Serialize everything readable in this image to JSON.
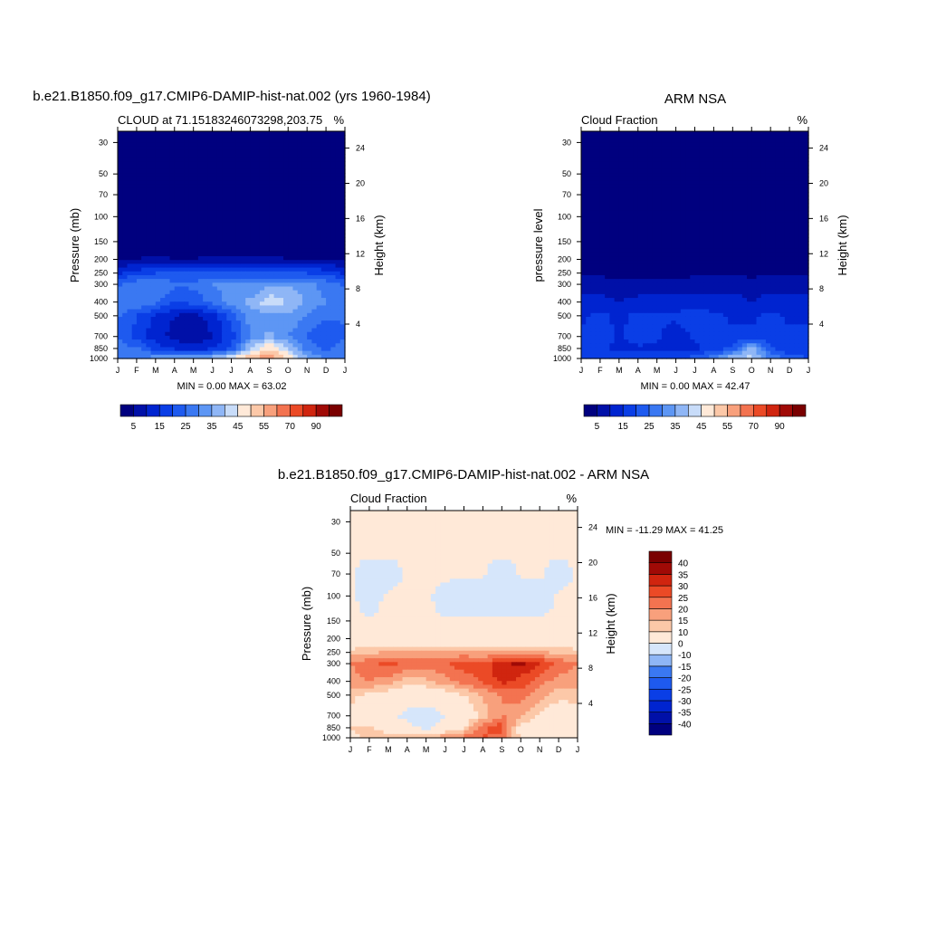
{
  "panels": {
    "model": {
      "title": "b.e21.B1850.f09_g17.CMIP6-DAMIP-hist-nat.002 (yrs 1960-1984)",
      "left_label": "CLOUD at 71.15183246073298,203.75",
      "right_label": "%",
      "ylabel_left": "Pressure (mb)",
      "ylabel_right": "Height (km)",
      "stats": "MIN =   0.00 MAX =  63.02"
    },
    "obs": {
      "title": "ARM NSA",
      "left_label": "Cloud Fraction",
      "right_label": "%",
      "ylabel_left": "pressure level",
      "ylabel_right": "Height (km)",
      "stats": "MIN =   0.00 MAX =  42.47"
    },
    "diff": {
      "title": "b.e21.B1850.f09_g17.CMIP6-DAMIP-hist-nat.002 - ARM NSA",
      "left_label": "Cloud Fraction",
      "right_label": "%",
      "ylabel_left": "Pressure (mb)",
      "ylabel_right": "Height (km)",
      "stats": "MIN = -11.29 MAX =  41.25"
    }
  },
  "chart_data": [
    {
      "type": "heatmap",
      "name": "model",
      "x": [
        "J",
        "F",
        "M",
        "A",
        "M",
        "J",
        "J",
        "A",
        "S",
        "O",
        "N",
        "D",
        "J"
      ],
      "pressure_ticks": [
        30,
        50,
        70,
        100,
        150,
        200,
        250,
        300,
        400,
        500,
        700,
        850,
        1000
      ],
      "height_ticks": [
        24,
        20,
        16,
        12,
        8,
        4
      ],
      "plev": [
        1000,
        850,
        700,
        500,
        400,
        300,
        250,
        200,
        150,
        100,
        70,
        50,
        30
      ],
      "values": [
        [
          30,
          30,
          33,
          36,
          36,
          40,
          46,
          56,
          60,
          50,
          36,
          30,
          30
        ],
        [
          28,
          26,
          18,
          14,
          12,
          14,
          20,
          40,
          50,
          40,
          28,
          24,
          28
        ],
        [
          24,
          18,
          12,
          8,
          6,
          10,
          18,
          30,
          36,
          30,
          24,
          20,
          24
        ],
        [
          26,
          20,
          14,
          10,
          8,
          12,
          22,
          32,
          34,
          34,
          30,
          26,
          26
        ],
        [
          30,
          30,
          26,
          20,
          22,
          26,
          34,
          36,
          44,
          40,
          34,
          30,
          30
        ],
        [
          24,
          28,
          30,
          26,
          26,
          30,
          32,
          30,
          34,
          34,
          32,
          28,
          24
        ],
        [
          14,
          18,
          20,
          20,
          20,
          20,
          20,
          20,
          20,
          20,
          20,
          18,
          14
        ],
        [
          4,
          5,
          6,
          5,
          5,
          6,
          6,
          6,
          6,
          5,
          5,
          5,
          4
        ],
        [
          2,
          2,
          2,
          2,
          2,
          2,
          2,
          2,
          2,
          2,
          2,
          2,
          2
        ],
        [
          1,
          1,
          1,
          1,
          1,
          1,
          1,
          1,
          1,
          1,
          1,
          1,
          1
        ],
        [
          1,
          1,
          1,
          1,
          1,
          1,
          1,
          1,
          1,
          1,
          1,
          1,
          1
        ],
        [
          1,
          1,
          1,
          1,
          1,
          1,
          1,
          1,
          1,
          1,
          1,
          1,
          1
        ],
        [
          1,
          1,
          1,
          1,
          1,
          1,
          1,
          1,
          1,
          1,
          1,
          1,
          1
        ]
      ],
      "levels": [
        5,
        10,
        15,
        20,
        25,
        30,
        35,
        40,
        45,
        50,
        55,
        60,
        70,
        80,
        90
      ],
      "colorbar_labels": [
        "5",
        "15",
        "25",
        "35",
        "45",
        "55",
        "70",
        "90"
      ]
    },
    {
      "type": "heatmap",
      "name": "obs",
      "x": [
        "J",
        "F",
        "M",
        "A",
        "M",
        "J",
        "J",
        "A",
        "S",
        "O",
        "N",
        "D",
        "J"
      ],
      "pressure_ticks": [
        30,
        50,
        70,
        100,
        150,
        200,
        250,
        300,
        400,
        500,
        700,
        850,
        1000
      ],
      "height_ticks": [
        24,
        20,
        16,
        12,
        8,
        4
      ],
      "plev": [
        1000,
        850,
        700,
        500,
        400,
        300,
        250,
        200,
        150,
        100,
        70,
        50,
        30
      ],
      "values": [
        [
          20,
          20,
          18,
          18,
          18,
          20,
          22,
          30,
          40,
          42,
          30,
          22,
          20
        ],
        [
          18,
          16,
          14,
          14,
          14,
          12,
          14,
          16,
          22,
          38,
          20,
          16,
          18
        ],
        [
          16,
          18,
          14,
          18,
          16,
          12,
          16,
          18,
          16,
          16,
          18,
          16,
          16
        ],
        [
          14,
          16,
          14,
          16,
          16,
          16,
          18,
          16,
          14,
          14,
          16,
          14,
          14
        ],
        [
          12,
          12,
          10,
          12,
          12,
          12,
          12,
          12,
          12,
          10,
          12,
          12,
          12
        ],
        [
          8,
          8,
          6,
          6,
          8,
          6,
          8,
          8,
          8,
          8,
          8,
          8,
          8
        ],
        [
          4,
          4,
          3,
          3,
          3,
          3,
          4,
          4,
          4,
          3,
          4,
          4,
          4
        ],
        [
          2,
          2,
          2,
          2,
          2,
          2,
          2,
          2,
          2,
          2,
          2,
          2,
          2
        ],
        [
          1,
          1,
          1,
          1,
          1,
          1,
          1,
          1,
          1,
          1,
          1,
          1,
          1
        ],
        [
          1,
          1,
          1,
          1,
          1,
          1,
          1,
          1,
          1,
          1,
          1,
          1,
          1
        ],
        [
          1,
          1,
          1,
          1,
          1,
          1,
          1,
          1,
          1,
          1,
          1,
          1,
          1
        ],
        [
          1,
          1,
          1,
          1,
          1,
          1,
          1,
          1,
          1,
          1,
          1,
          1,
          1
        ],
        [
          1,
          1,
          1,
          1,
          1,
          1,
          1,
          1,
          1,
          1,
          1,
          1,
          1
        ]
      ],
      "levels": [
        5,
        10,
        15,
        20,
        25,
        30,
        35,
        40,
        45,
        50,
        55,
        60,
        70,
        80,
        90
      ],
      "colorbar_labels": [
        "5",
        "15",
        "25",
        "35",
        "45",
        "55",
        "70",
        "90"
      ]
    },
    {
      "type": "heatmap",
      "name": "diff",
      "x": [
        "J",
        "F",
        "M",
        "A",
        "M",
        "J",
        "J",
        "A",
        "S",
        "O",
        "N",
        "D",
        "J"
      ],
      "pressure_ticks": [
        30,
        50,
        70,
        100,
        150,
        200,
        250,
        300,
        400,
        500,
        700,
        850,
        1000
      ],
      "height_ticks": [
        24,
        20,
        16,
        12,
        8,
        4
      ],
      "plev": [
        1000,
        850,
        700,
        500,
        400,
        300,
        250,
        200,
        150,
        100,
        70,
        50,
        30
      ],
      "values": [
        [
          8,
          12,
          14,
          16,
          16,
          18,
          22,
          26,
          22,
          10,
          8,
          8,
          8
        ],
        [
          10,
          12,
          6,
          2,
          -2,
          4,
          10,
          24,
          28,
          6,
          8,
          8,
          10
        ],
        [
          8,
          4,
          2,
          -2,
          -4,
          0,
          4,
          12,
          20,
          16,
          8,
          4,
          8
        ],
        [
          12,
          8,
          6,
          4,
          4,
          6,
          10,
          16,
          20,
          22,
          18,
          12,
          12
        ],
        [
          18,
          20,
          18,
          12,
          14,
          18,
          22,
          26,
          32,
          28,
          22,
          18,
          18
        ],
        [
          20,
          24,
          26,
          24,
          22,
          24,
          28,
          26,
          34,
          36,
          30,
          24,
          20
        ],
        [
          12,
          14,
          16,
          16,
          16,
          16,
          16,
          16,
          16,
          16,
          16,
          14,
          12
        ],
        [
          3,
          3,
          4,
          3,
          3,
          4,
          4,
          4,
          4,
          3,
          3,
          3,
          3
        ],
        [
          1,
          1,
          1,
          1,
          1,
          1,
          1,
          1,
          1,
          1,
          1,
          1,
          1
        ],
        [
          2,
          -4,
          2,
          2,
          2,
          -4,
          -6,
          -6,
          -6,
          -6,
          -6,
          2,
          2
        ],
        [
          2,
          -6,
          -6,
          2,
          2,
          2,
          2,
          2,
          -8,
          2,
          2,
          -6,
          2
        ],
        [
          2,
          2,
          2,
          2,
          2,
          2,
          2,
          2,
          2,
          2,
          2,
          2,
          2
        ],
        [
          2,
          2,
          2,
          2,
          2,
          2,
          2,
          2,
          2,
          2,
          2,
          2,
          2
        ]
      ],
      "levels": [
        -40,
        -35,
        -30,
        -25,
        -20,
        -15,
        -10,
        0,
        10,
        15,
        20,
        25,
        30,
        35,
        40
      ],
      "colorbar_labels": [
        "-40",
        "-35",
        "-30",
        "-25",
        "-20",
        "-15",
        "-10",
        "0",
        "10",
        "15",
        "20",
        "25",
        "30",
        "35",
        "40"
      ]
    }
  ],
  "colors": {
    "seq": [
      "#00007f",
      "#0010a8",
      "#0024d0",
      "#0a3ee6",
      "#1e5aef",
      "#3a78f2",
      "#5d96f4",
      "#8fb6f6",
      "#c8dcf9",
      "#ffe9d8",
      "#fcc8a8",
      "#f8a07c",
      "#f37350",
      "#eb4a26",
      "#d0250f",
      "#a00a06",
      "#7a0000"
    ],
    "div": [
      "#00007f",
      "#0010a8",
      "#0024d0",
      "#0a3ee6",
      "#1e5aef",
      "#3a78f2",
      "#8fb6f6",
      "#d6e6fb",
      "#ffe9d8",
      "#fcc8a8",
      "#f8a07c",
      "#f37350",
      "#eb4a26",
      "#d0250f",
      "#a00a06",
      "#7a0000"
    ]
  }
}
